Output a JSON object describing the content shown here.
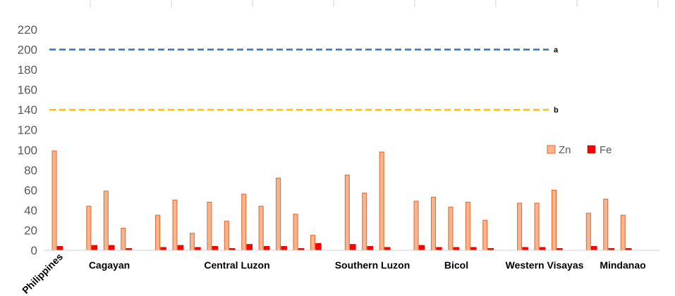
{
  "chart_data": {
    "type": "bar",
    "ylim": [
      0,
      220
    ],
    "y_ticks": [
      0,
      20,
      40,
      60,
      80,
      100,
      120,
      140,
      160,
      180,
      200,
      220
    ],
    "grid": false,
    "legend_position": "right",
    "series": [
      {
        "name": "Zn",
        "color": "#f8b48e",
        "stroke": "#e0662a",
        "values": [
          99,
          44,
          59,
          22,
          35,
          50,
          17,
          48,
          29,
          56,
          44,
          72,
          36,
          15,
          75,
          57,
          98,
          49,
          53,
          43,
          48,
          30,
          47,
          47,
          60,
          37,
          51,
          35
        ]
      },
      {
        "name": "Fe",
        "color": "#ff0000",
        "stroke": "#c00000",
        "values": [
          4,
          5,
          5,
          2,
          3,
          5,
          3,
          4,
          2,
          6,
          4,
          4,
          2,
          7,
          6,
          4,
          3,
          5,
          3,
          3,
          3,
          2,
          3,
          3,
          2,
          4,
          2,
          2
        ]
      }
    ],
    "group_positions": [
      1,
      3,
      4,
      5,
      7,
      8,
      9,
      10,
      11,
      12,
      13,
      14,
      15,
      16,
      18,
      19,
      20,
      22,
      23,
      24,
      25,
      26,
      28,
      29,
      30,
      32,
      33,
      34
    ],
    "region_labels": [
      "Philippines",
      "Cagayan",
      "Central Luzon",
      "Southern Luzon",
      "Bicol",
      "Western Visayas",
      "Mindanao"
    ],
    "reference_lines": [
      {
        "label": "a",
        "value": 200,
        "color": "#2e75b6"
      },
      {
        "label": "b",
        "value": 140,
        "color": "#ffc000"
      }
    ]
  }
}
